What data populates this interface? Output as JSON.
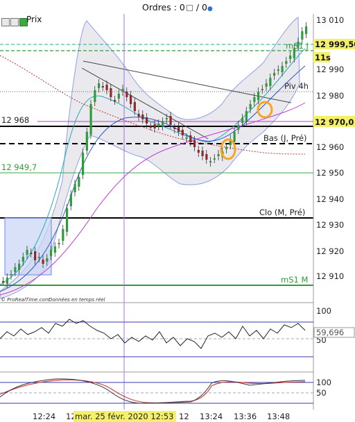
{
  "header": {
    "orders_label": "Ordres : 0",
    "orders_count": " / 0"
  },
  "instrument": {
    "label": "Prix"
  },
  "price_axis": {
    "ticks": [
      "13 010",
      "12 990",
      "12 980",
      "12 960",
      "12 950",
      "12 940",
      "12 930",
      "12 920",
      "12 910"
    ],
    "tags": {
      "current_price": "12 999,50",
      "timer": "11s",
      "level_high": "12 970,0"
    }
  },
  "levels": {
    "left_level": "12 968",
    "ms1_j": "mS1 J",
    "piv_4h": "Piv 4h",
    "bas_j_pre": "Bas (J, Pré)",
    "green_level": "12 949,7",
    "clo_m_pre": "Clo (M, Pré)",
    "ms1_m": "mS1 M"
  },
  "credit": {
    "brand": "© ProRealTime.com",
    "note": "Données en temps réel"
  },
  "indicator1": {
    "ticks": [
      "100",
      "50"
    ],
    "value": "59,696"
  },
  "indicator2": {
    "ticks": [
      "100",
      "50"
    ]
  },
  "time_axis": {
    "ticks": [
      "12:24",
      "12",
      "12",
      "13:24",
      "13:36",
      "13:48"
    ],
    "cursor": "mar. 25 févr. 2020 12:53"
  },
  "colors": {
    "bollinger_fill": "#e9e9ee",
    "bollinger_line": "#8aa0e0",
    "green_line": "#2e9c3a",
    "magenta_line": "#c23ad6",
    "cursor_line": "#a070e0",
    "highlight_yellow": "#f5f06a",
    "circle_orange": "#f5a623",
    "box_blue": "#7f98e8"
  }
}
